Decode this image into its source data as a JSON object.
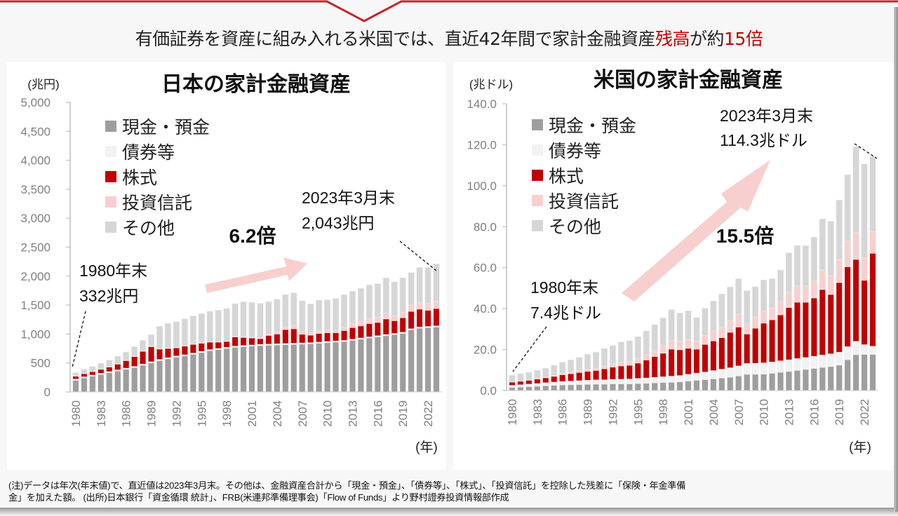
{
  "headline": {
    "part1": "有価証券を資産に組み入れる米国では、直近42年間で家計金融資産",
    "part2_red": "残高",
    "part3": "が約",
    "part4_red": "15倍"
  },
  "colors": {
    "cash": "#9e9e9e",
    "bonds": "#f2f2f2",
    "stocks": "#c00000",
    "funds": "#f8cfcf",
    "other": "#d6d6d6",
    "arrow": "#f8cfcf",
    "accent_red": "#c00000"
  },
  "legend": [
    {
      "key": "cash",
      "label": "現金・預金"
    },
    {
      "key": "bonds",
      "label": "債券等"
    },
    {
      "key": "stocks",
      "label": "株式"
    },
    {
      "key": "funds",
      "label": "投資信託"
    },
    {
      "key": "other",
      "label": "その他"
    }
  ],
  "chart_data": [
    {
      "type": "bar",
      "stacked": true,
      "title": "日本の家計金融資産",
      "ylabel": "(兆円)",
      "xlabel": "(年)",
      "ylim": [
        0,
        5000
      ],
      "yticks": [
        0,
        500,
        1000,
        1500,
        2000,
        2500,
        3000,
        3500,
        4000,
        4500,
        5000
      ],
      "ytick_labels": [
        "0",
        "500",
        "1,000",
        "1,500",
        "2,000",
        "2,500",
        "3,000",
        "3,500",
        "4,000",
        "4,500",
        "5,000"
      ],
      "xtick_labels": [
        "1980",
        "1983",
        "1986",
        "1989",
        "1992",
        "1995",
        "1998",
        "2001",
        "2004",
        "2007",
        "2010",
        "2013",
        "2016",
        "2019",
        "2022"
      ],
      "categories": [
        "1980",
        "1981",
        "1982",
        "1983",
        "1984",
        "1985",
        "1986",
        "1987",
        "1988",
        "1989",
        "1990",
        "1991",
        "1992",
        "1993",
        "1994",
        "1995",
        "1996",
        "1997",
        "1998",
        "1999",
        "2000",
        "2001",
        "2002",
        "2003",
        "2004",
        "2005",
        "2006",
        "2007",
        "2008",
        "2009",
        "2010",
        "2011",
        "2012",
        "2013",
        "2014",
        "2015",
        "2016",
        "2017",
        "2018",
        "2019",
        "2020",
        "2021",
        "2022",
        "2023/3"
      ],
      "series": [
        {
          "name": "現金・預金",
          "key": "cash",
          "values": [
            200,
            240,
            270,
            300,
            330,
            360,
            390,
            420,
            460,
            500,
            540,
            570,
            600,
            620,
            650,
            680,
            710,
            730,
            750,
            770,
            780,
            790,
            800,
            805,
            810,
            815,
            820,
            825,
            830,
            840,
            850,
            860,
            870,
            890,
            910,
            930,
            950,
            970,
            990,
            1010,
            1070,
            1100,
            1110,
            1120
          ]
        },
        {
          "name": "債券等",
          "key": "bonds",
          "values": [
            20,
            20,
            20,
            20,
            20,
            20,
            20,
            20,
            20,
            20,
            20,
            20,
            20,
            20,
            20,
            20,
            20,
            20,
            20,
            20,
            20,
            20,
            20,
            20,
            20,
            20,
            20,
            20,
            20,
            20,
            20,
            20,
            20,
            20,
            20,
            20,
            20,
            20,
            20,
            20,
            20,
            20,
            20,
            20
          ]
        },
        {
          "name": "株式",
          "key": "stocks",
          "values": [
            50,
            55,
            60,
            70,
            80,
            100,
            130,
            170,
            220,
            260,
            180,
            160,
            140,
            150,
            150,
            140,
            130,
            110,
            100,
            160,
            140,
            120,
            100,
            150,
            170,
            240,
            250,
            150,
            130,
            150,
            150,
            140,
            170,
            200,
            210,
            230,
            230,
            270,
            220,
            250,
            300,
            310,
            280,
            300
          ]
        },
        {
          "name": "投資信託",
          "key": "funds",
          "values": [
            5,
            5,
            5,
            5,
            6,
            7,
            8,
            10,
            12,
            14,
            14,
            13,
            12,
            13,
            13,
            12,
            12,
            12,
            12,
            14,
            16,
            18,
            20,
            25,
            35,
            50,
            60,
            50,
            40,
            45,
            50,
            50,
            60,
            70,
            80,
            90,
            90,
            100,
            90,
            100,
            110,
            120,
            120,
            130
          ]
        },
        {
          "name": "その他",
          "key": "other",
          "values": [
            57,
            70,
            85,
            100,
            114,
            128,
            142,
            160,
            178,
            196,
            380,
            420,
            440,
            460,
            480,
            500,
            520,
            540,
            560,
            560,
            600,
            600,
            590,
            560,
            565,
            555,
            560,
            530,
            500,
            530,
            520,
            545,
            560,
            560,
            570,
            580,
            580,
            610,
            580,
            590,
            560,
            600,
            620,
            643
          ]
        }
      ],
      "annotations": [
        {
          "text": "1980年末",
          "text2": "332兆円"
        },
        {
          "text": "2023年3月末",
          "text2": "2,043兆円"
        },
        {
          "text": "6.2倍"
        }
      ]
    },
    {
      "type": "bar",
      "stacked": true,
      "title": "米国の家計金融資産",
      "ylabel": "(兆ドル)",
      "xlabel": "(年)",
      "ylim": [
        0,
        140
      ],
      "yticks": [
        0,
        20,
        40,
        60,
        80,
        100,
        120,
        140
      ],
      "ytick_labels": [
        "0.0",
        "20.0",
        "40.0",
        "60.0",
        "80.0",
        "100.0",
        "120.0",
        "140.0"
      ],
      "xtick_labels": [
        "1980",
        "1983",
        "1986",
        "1989",
        "1992",
        "1995",
        "1998",
        "2001",
        "2004",
        "2007",
        "2010",
        "2013",
        "2016",
        "2019",
        "2022"
      ],
      "categories": [
        "1980",
        "1981",
        "1982",
        "1983",
        "1984",
        "1985",
        "1986",
        "1987",
        "1988",
        "1989",
        "1990",
        "1991",
        "1992",
        "1993",
        "1994",
        "1995",
        "1996",
        "1997",
        "1998",
        "1999",
        "2000",
        "2001",
        "2002",
        "2003",
        "2004",
        "2005",
        "2006",
        "2007",
        "2008",
        "2009",
        "2010",
        "2011",
        "2012",
        "2013",
        "2014",
        "2015",
        "2016",
        "2017",
        "2018",
        "2019",
        "2020",
        "2021",
        "2022",
        "2023/3"
      ],
      "series": [
        {
          "name": "現金・預金",
          "key": "cash",
          "values": [
            1.5,
            1.7,
            1.9,
            2.1,
            2.3,
            2.5,
            2.7,
            2.8,
            2.9,
            3.0,
            3.1,
            3.1,
            3.2,
            3.2,
            3.2,
            3.4,
            3.5,
            3.7,
            3.9,
            4.0,
            4.2,
            4.6,
            5.0,
            5.3,
            5.7,
            6.1,
            6.5,
            7.1,
            7.9,
            7.9,
            8.0,
            8.4,
            8.9,
            9.3,
            9.8,
            10.3,
            10.8,
            11.3,
            11.7,
            12.4,
            15.0,
            17.5,
            17.6,
            17.6
          ]
        },
        {
          "name": "債券等",
          "key": "bonds",
          "values": [
            1.0,
            1.1,
            1.2,
            1.3,
            1.5,
            1.6,
            1.7,
            1.8,
            1.9,
            2.0,
            2.1,
            2.1,
            2.2,
            2.3,
            2.4,
            2.5,
            2.6,
            2.7,
            2.8,
            3.0,
            3.1,
            3.3,
            3.5,
            3.7,
            4.0,
            4.3,
            4.6,
            4.9,
            5.3,
            5.4,
            5.5,
            5.5,
            5.6,
            5.7,
            5.8,
            5.8,
            5.9,
            6.0,
            6.2,
            6.3,
            6.4,
            6.5,
            4.8,
            4.0
          ]
        },
        {
          "name": "株式",
          "key": "stocks",
          "values": [
            1.6,
            1.7,
            1.9,
            2.2,
            2.4,
            2.8,
            3.3,
            3.6,
            4.0,
            4.4,
            4.6,
            5.4,
            6.0,
            6.5,
            6.7,
            7.5,
            8.8,
            10.2,
            11.5,
            13.2,
            12.6,
            12.7,
            11.7,
            13.5,
            14.5,
            15.4,
            17.3,
            19.0,
            14.4,
            17.1,
            19.4,
            20.6,
            22.4,
            25.5,
            27.5,
            27.0,
            28.5,
            32.0,
            29.0,
            34.0,
            39.0,
            40.0,
            31.4,
            45.4
          ]
        },
        {
          "name": "投資信託",
          "key": "funds",
          "values": [
            0.1,
            0.1,
            0.2,
            0.3,
            0.4,
            0.5,
            0.7,
            0.8,
            0.9,
            1.0,
            1.1,
            1.3,
            1.6,
            1.9,
            2.0,
            2.3,
            2.7,
            3.2,
            3.8,
            4.2,
            4.3,
            4.2,
            3.9,
            4.4,
            5.0,
            5.3,
            5.8,
            6.2,
            4.9,
            5.5,
            5.9,
            5.8,
            6.6,
            7.5,
            8.0,
            8.0,
            8.3,
            9.6,
            9.2,
            11.1,
            12.5,
            13.0,
            11.0,
            10.6
          ]
        },
        {
          "name": "その他",
          "key": "other",
          "values": [
            3.2,
            3.6,
            3.7,
            4.0,
            4.3,
            5.0,
            5.4,
            6.0,
            6.5,
            7.3,
            7.9,
            8.6,
            9.0,
            9.8,
            10.0,
            10.6,
            11.5,
            12.4,
            13.5,
            15.1,
            13.6,
            14.1,
            11.5,
            13.3,
            14.5,
            16.0,
            16.4,
            17.4,
            16.3,
            14.8,
            15.2,
            14.3,
            15.3,
            19.2,
            19.7,
            19.6,
            21.4,
            24.9,
            26.5,
            29.2,
            32.5,
            42.0,
            45.8,
            36.7
          ]
        }
      ],
      "annotations": [
        {
          "text": "1980年末",
          "text2": "7.4兆ドル"
        },
        {
          "text": "2023年3月末",
          "text2": "114.3兆ドル"
        },
        {
          "text": "15.5倍"
        }
      ]
    }
  ],
  "footnote": {
    "line1": "(注)データは年次(年末値)で、直近値は2023年3月末。その他は、金融資産合計から「現金・預金」、「債券等」、「株式」、「投資信託」を控除した残差に「保険・年金準備",
    "line2": "金」を加えた額。 (出所)日本銀行「資金循環 統計」、FRB(米連邦準備理事会)「Flow of Funds」より野村證券投資情報部作成"
  }
}
